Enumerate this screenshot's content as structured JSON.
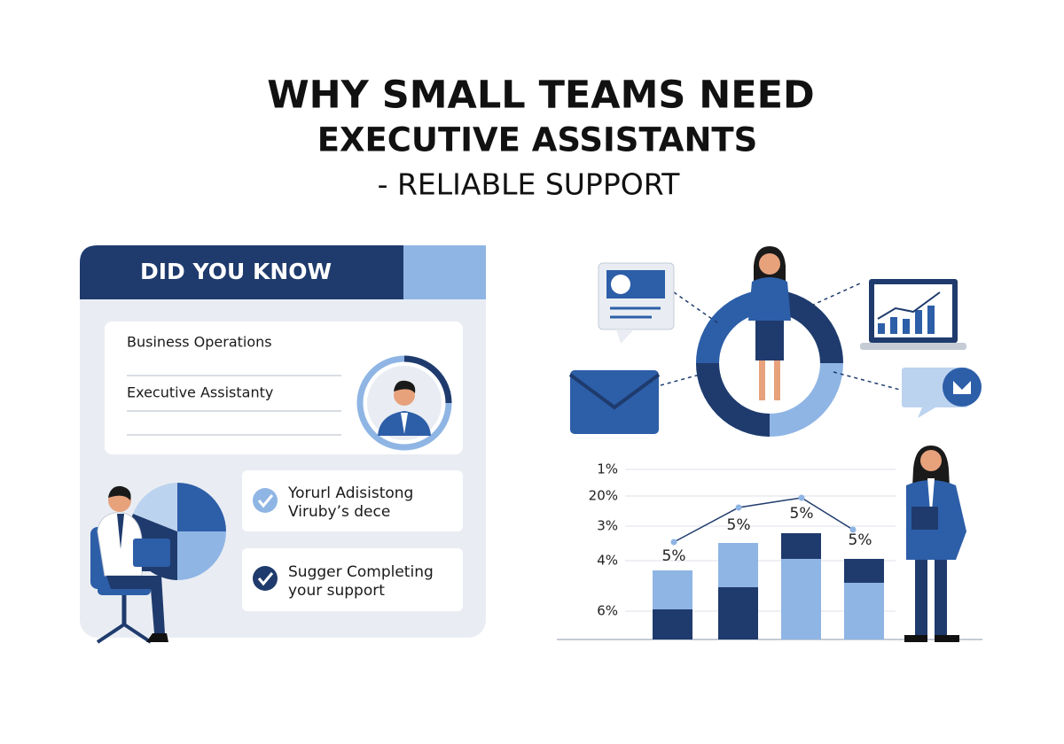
{
  "header": {
    "title_lines": [
      "WHY SMALL TEAMS NEED",
      "EXECUTIVE ASSISTANTS"
    ],
    "subtitle": "- RELIABLE SUPPORT"
  },
  "card": {
    "title": "DID YOU KNOW",
    "fields": [
      "Business Operations",
      "Executive Assistanty"
    ],
    "checklist": [
      [
        "Yorurl Adisistong",
        "Viruby’s dece"
      ],
      [
        "Sugger Completing",
        "your support"
      ]
    ]
  },
  "illustration_chart": {
    "axis_labels": [
      "1%",
      "20%",
      "3%",
      "4%",
      "6%"
    ],
    "bar_labels": [
      "5%",
      "5%",
      "5%",
      "5%"
    ]
  }
}
